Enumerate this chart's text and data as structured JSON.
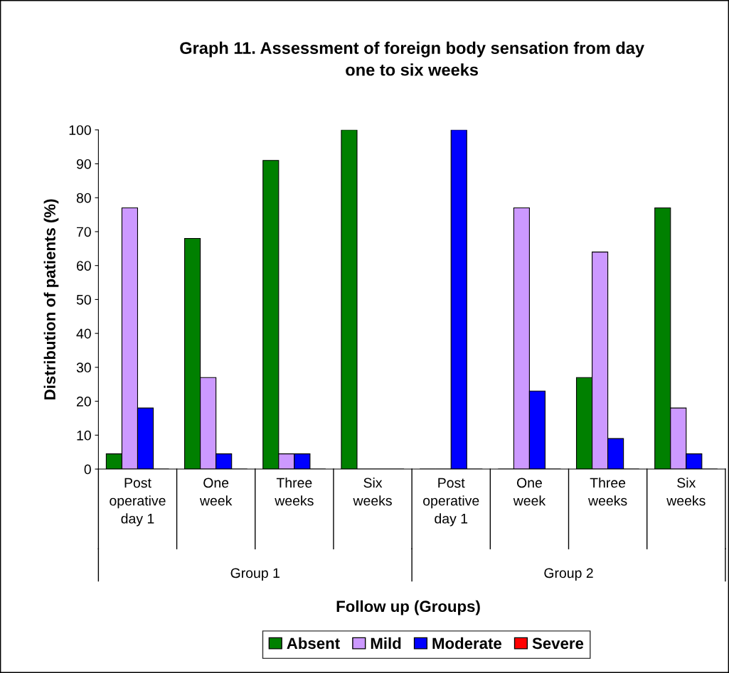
{
  "chart_data": {
    "type": "bar",
    "title": "Graph 11. Assessment of foreign body sensation from day\none to six weeks",
    "xlabel": "Follow up (Groups)",
    "ylabel": "Distribution of patients (%)",
    "categories": [
      "Post\noperative\nday 1",
      "One\nweek",
      "Three\nweeks",
      "Six\nweeks",
      "Post\noperative\nday 1",
      "One\nweek",
      "Three\nweeks",
      "Six\nweeks"
    ],
    "series": [
      {
        "name": "Absent",
        "color": "#008000",
        "values": [
          4.5,
          68,
          91,
          100,
          0,
          0,
          27,
          77
        ]
      },
      {
        "name": "Mild",
        "color": "#cc99ff",
        "values": [
          77,
          27,
          4.5,
          0,
          0,
          77,
          64,
          18
        ]
      },
      {
        "name": "Moderate",
        "color": "#0000ff",
        "values": [
          18,
          4.5,
          4.5,
          0,
          100,
          23,
          9,
          4.5
        ]
      },
      {
        "name": "Severe",
        "color": "#ff0000",
        "values": [
          0,
          0,
          0,
          0,
          0,
          0,
          0,
          0
        ]
      }
    ],
    "annotations": [
      "Group 1",
      "Group 2"
    ],
    "ylim": [
      0,
      100
    ],
    "yticks": [
      0,
      10,
      20,
      30,
      40,
      50,
      60,
      70,
      80,
      90,
      100
    ],
    "grid": false,
    "legend": "bottom"
  }
}
